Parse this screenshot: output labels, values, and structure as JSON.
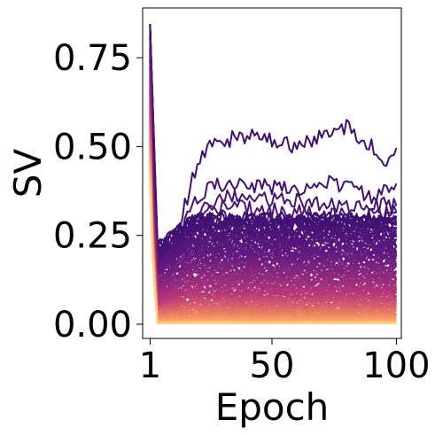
{
  "chart_data": {
    "type": "line",
    "title": "",
    "xlabel": "Epoch",
    "ylabel": "SV",
    "xlim": [
      -2,
      102
    ],
    "ylim": [
      -0.04,
      0.89
    ],
    "xticks": [
      1,
      50,
      100
    ],
    "xtick_labels": [
      "1",
      "50",
      "100"
    ],
    "yticks": [
      0.0,
      0.25,
      0.5,
      0.75
    ],
    "ytick_labels": [
      "0.00",
      "0.25",
      "0.50",
      "0.75"
    ],
    "grid": false,
    "legend": "none",
    "colormap": "magma",
    "colors": {
      "darkest": "#3b0f70",
      "dark": "#641a80",
      "mid": "#b73779",
      "light": "#f4895c",
      "lightest": "#fcd08a"
    },
    "series_count": 120,
    "series": [
      {
        "values": [
          [
            1,
            0.84
          ],
          [
            4,
            0.23
          ],
          [
            10,
            0.22
          ],
          [
            20,
            0.45
          ],
          [
            25,
            0.51
          ],
          [
            40,
            0.53
          ],
          [
            60,
            0.5
          ],
          [
            75,
            0.54
          ],
          [
            80,
            0.56
          ],
          [
            90,
            0.5
          ],
          [
            95,
            0.46
          ],
          [
            100,
            0.48
          ]
        ]
      },
      {
        "values": [
          [
            1,
            0.84
          ],
          [
            4,
            0.22
          ],
          [
            10,
            0.21
          ],
          [
            20,
            0.36
          ],
          [
            25,
            0.39
          ],
          [
            40,
            0.39
          ],
          [
            60,
            0.38
          ],
          [
            75,
            0.4
          ],
          [
            90,
            0.36
          ],
          [
            100,
            0.38
          ]
        ]
      },
      {
        "values": [
          [
            1,
            0.84
          ],
          [
            4,
            0.21
          ],
          [
            10,
            0.2
          ],
          [
            20,
            0.32
          ],
          [
            30,
            0.36
          ],
          [
            50,
            0.35
          ],
          [
            70,
            0.34
          ],
          [
            90,
            0.33
          ],
          [
            100,
            0.34
          ]
        ]
      },
      {
        "values": [
          [
            1,
            0.84
          ],
          [
            4,
            0.2
          ],
          [
            10,
            0.19
          ],
          [
            20,
            0.3
          ],
          [
            30,
            0.33
          ],
          [
            50,
            0.32
          ],
          [
            70,
            0.31
          ],
          [
            90,
            0.3
          ],
          [
            100,
            0.32
          ]
        ]
      },
      {
        "values": [
          [
            1,
            0.84
          ],
          [
            4,
            0.19
          ],
          [
            10,
            0.18
          ],
          [
            20,
            0.27
          ],
          [
            30,
            0.3
          ],
          [
            50,
            0.29
          ],
          [
            70,
            0.28
          ],
          [
            90,
            0.28
          ],
          [
            100,
            0.29
          ]
        ]
      }
    ]
  }
}
